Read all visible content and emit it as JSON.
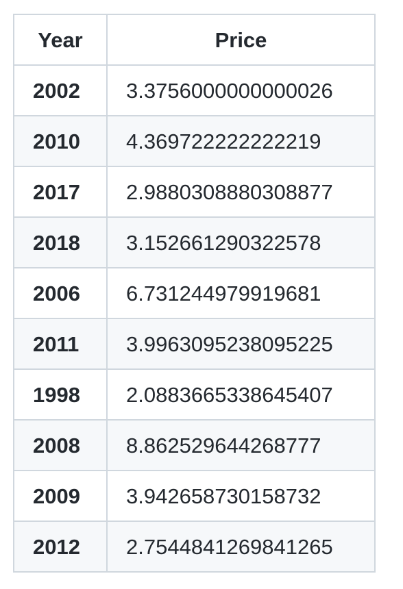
{
  "table": {
    "headers": {
      "year": "Year",
      "price": "Price"
    },
    "rows": [
      {
        "year": "2002",
        "price": "3.3756000000000026"
      },
      {
        "year": "2010",
        "price": "4.369722222222219"
      },
      {
        "year": "2017",
        "price": "2.9880308880308877"
      },
      {
        "year": "2018",
        "price": "3.152661290322578"
      },
      {
        "year": "2006",
        "price": "6.731244979919681"
      },
      {
        "year": "2011",
        "price": "3.9963095238095225"
      },
      {
        "year": "1998",
        "price": "2.0883665338645407"
      },
      {
        "year": "2008",
        "price": "8.862529644268777"
      },
      {
        "year": "2009",
        "price": "3.942658730158732"
      },
      {
        "year": "2012",
        "price": "2.7544841269841265"
      }
    ]
  }
}
